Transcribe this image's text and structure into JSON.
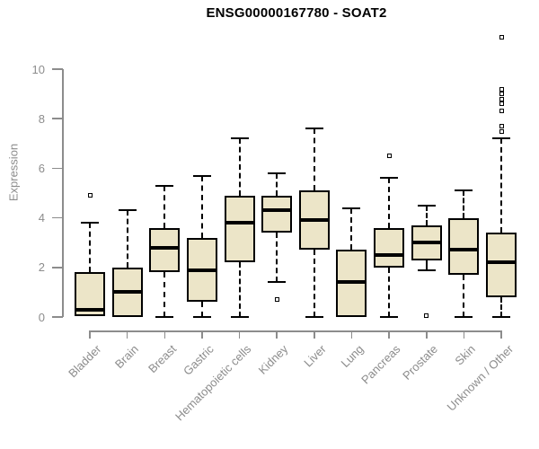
{
  "chart_data": {
    "type": "boxplot",
    "title": "ENSG00000167780 - SOAT2",
    "ylabel": "Expression",
    "xlabel": "",
    "ylim": [
      0,
      11.6
    ],
    "yticks": [
      0,
      2,
      4,
      6,
      8,
      10
    ],
    "grid": false,
    "legend": false,
    "categories": [
      "Bladder",
      "Brain",
      "Breast",
      "Gastric",
      "Hematopoietic cells",
      "Kidney",
      "Liver",
      "Lung",
      "Pancreas",
      "Prostate",
      "Skin",
      "Unknown / Other"
    ],
    "series": [
      {
        "category": "Bladder",
        "whisker_low": 0,
        "q1": 0.05,
        "median": 0.3,
        "q3": 1.8,
        "whisker_high": 3.8,
        "outliers": [
          4.9
        ]
      },
      {
        "category": "Brain",
        "whisker_low": 0,
        "q1": 0.0,
        "median": 1.0,
        "q3": 2.0,
        "whisker_high": 4.3,
        "outliers": []
      },
      {
        "category": "Breast",
        "whisker_low": 0,
        "q1": 1.8,
        "median": 2.8,
        "q3": 3.6,
        "whisker_high": 5.3,
        "outliers": []
      },
      {
        "category": "Gastric",
        "whisker_low": 0,
        "q1": 0.6,
        "median": 1.9,
        "q3": 3.2,
        "whisker_high": 5.7,
        "outliers": []
      },
      {
        "category": "Hematopoietic cells",
        "whisker_low": 0,
        "q1": 2.2,
        "median": 3.8,
        "q3": 4.9,
        "whisker_high": 7.2,
        "outliers": []
      },
      {
        "category": "Kidney",
        "whisker_low": 1.4,
        "q1": 3.4,
        "median": 4.3,
        "q3": 4.9,
        "whisker_high": 5.8,
        "outliers": [
          0.7
        ]
      },
      {
        "category": "Liver",
        "whisker_low": 0,
        "q1": 2.7,
        "median": 3.9,
        "q3": 5.1,
        "whisker_high": 7.6,
        "outliers": []
      },
      {
        "category": "Lung",
        "whisker_low": 0,
        "q1": 0.0,
        "median": 1.4,
        "q3": 2.7,
        "whisker_high": 4.4,
        "outliers": []
      },
      {
        "category": "Pancreas",
        "whisker_low": 0,
        "q1": 2.0,
        "median": 2.5,
        "q3": 3.6,
        "whisker_high": 5.6,
        "outliers": [
          6.5
        ]
      },
      {
        "category": "Prostate",
        "whisker_low": 1.9,
        "q1": 2.3,
        "median": 3.0,
        "q3": 3.7,
        "whisker_high": 4.5,
        "outliers": [
          0.05
        ]
      },
      {
        "category": "Skin",
        "whisker_low": 0,
        "q1": 1.7,
        "median": 2.7,
        "q3": 4.0,
        "whisker_high": 5.1,
        "outliers": []
      },
      {
        "category": "Unknown / Other",
        "whisker_low": 0,
        "q1": 0.8,
        "median": 2.2,
        "q3": 3.4,
        "whisker_high": 7.2,
        "outliers": [
          7.5,
          7.7,
          8.3,
          8.6,
          8.8,
          9.0,
          9.2,
          11.3
        ]
      }
    ]
  },
  "colors": {
    "box_fill": "#ECE5C8",
    "box_border": "#000000",
    "axis": "#8C8C8C",
    "tick_text": "#8C8C8C",
    "title_text": "#000000"
  }
}
